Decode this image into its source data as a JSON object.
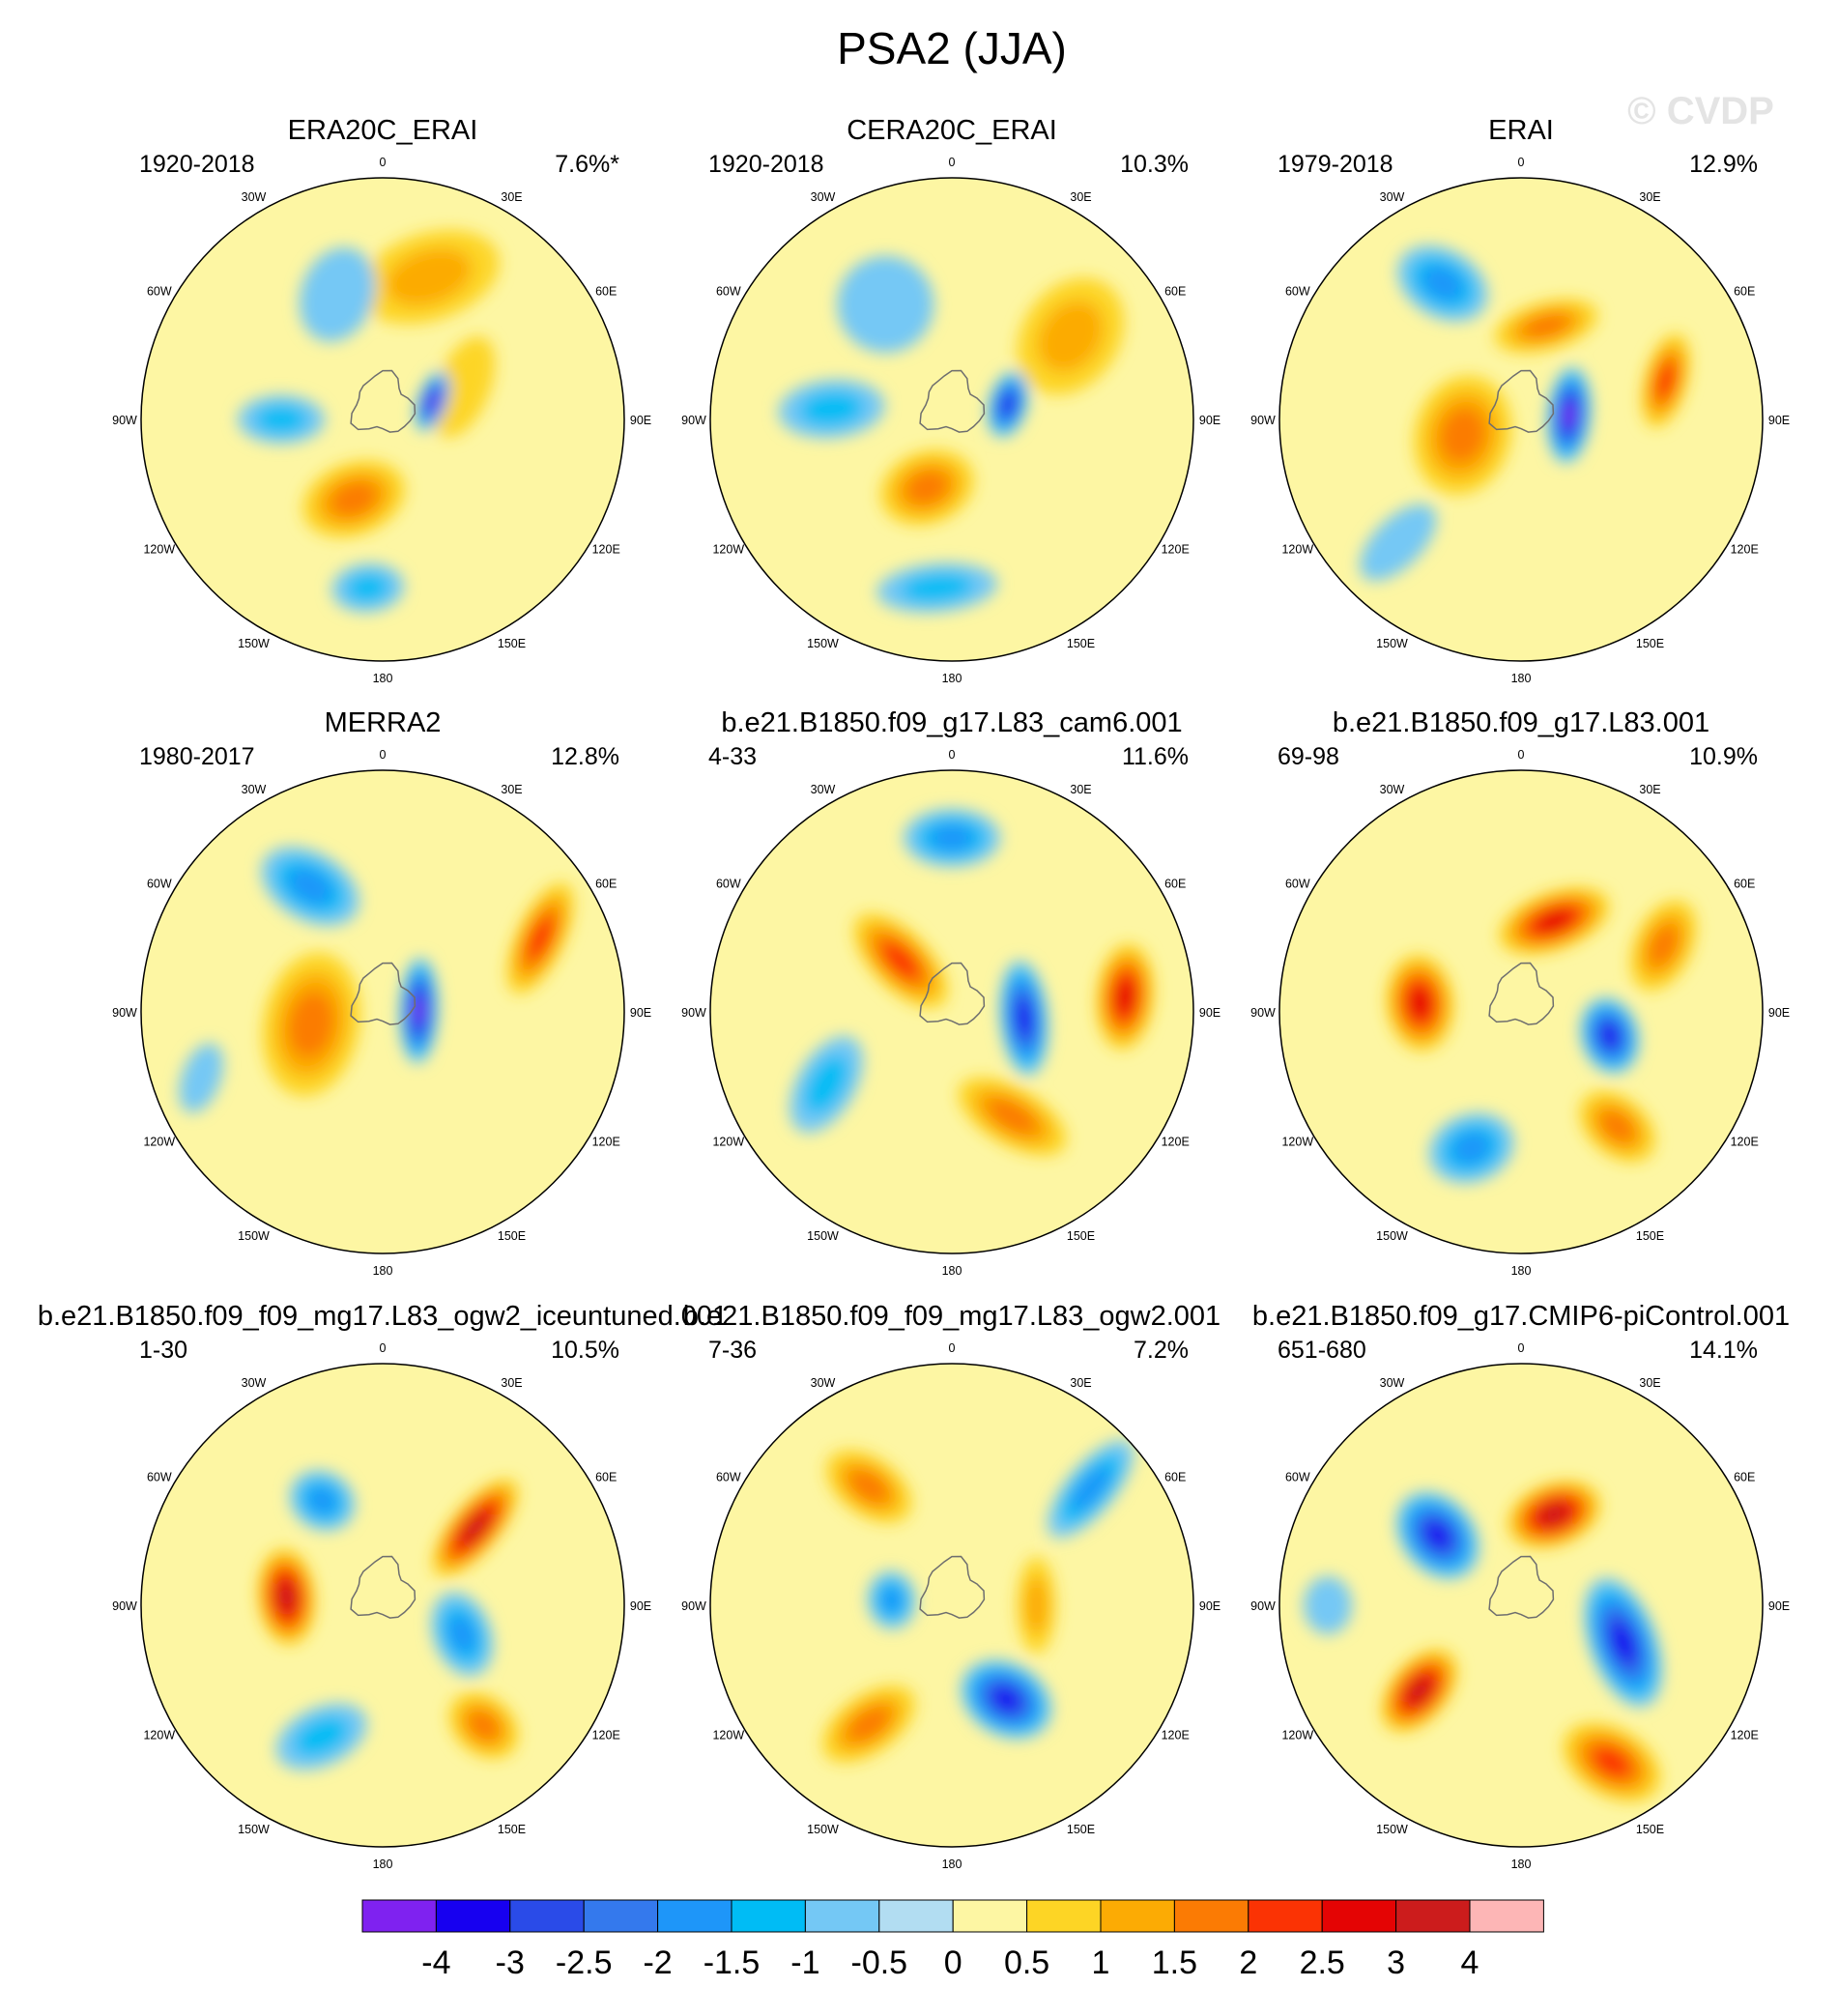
{
  "title": "PSA2 (JJA)",
  "watermark": "© CVDP",
  "lon_labels": [
    "0",
    "30E",
    "60E",
    "90E",
    "120E",
    "150E",
    "180",
    "150W",
    "120W",
    "90W",
    "60W",
    "30W"
  ],
  "colorbar": {
    "colors": [
      "#7f22f0",
      "#1700f0",
      "#2a4be8",
      "#3479ed",
      "#1e96f9",
      "#00bcf5",
      "#74c8f5",
      "#b2ddf2",
      "#fdf6a3",
      "#fdd525",
      "#fcab04",
      "#fb7b04",
      "#fb3304",
      "#e40404",
      "#cc1c1c",
      "#fdb6b6"
    ],
    "ticks": [
      "-4",
      "-3",
      "-2.5",
      "-2",
      "-1.5",
      "-1",
      "-0.5",
      "0",
      "0.5",
      "1",
      "1.5",
      "2",
      "2.5",
      "3",
      "4"
    ]
  },
  "chart_data": [
    {
      "type": "contour-map",
      "title": "ERA20C_ERAI",
      "period": "1920-2018",
      "variance": "7.6%*",
      "features": [
        {
          "lon": 198,
          "r": 0.62,
          "a": 0.3,
          "b": 0.18,
          "val": 1.0
        },
        {
          "lon": 248,
          "r": 0.36,
          "a": 0.22,
          "b": 0.11,
          "val": 0.9
        },
        {
          "lon": 250,
          "r": 0.22,
          "a": 0.13,
          "b": 0.06,
          "val": -4.0
        },
        {
          "lon": 20,
          "r": 0.35,
          "a": 0.22,
          "b": 0.15,
          "val": 1.5
        },
        {
          "lon": 5,
          "r": 0.7,
          "a": 0.15,
          "b": 0.1,
          "val": -1.0
        },
        {
          "lon": 90,
          "r": 0.42,
          "a": 0.1,
          "b": 0.18,
          "val": -1.0
        },
        {
          "lon": 160,
          "r": 0.55,
          "a": 0.15,
          "b": 0.2,
          "val": -0.5
        }
      ]
    },
    {
      "type": "contour-map",
      "title": "CERA20C_ERAI",
      "period": "1920-2018",
      "variance": "10.3%",
      "features": [
        {
          "lon": 235,
          "r": 0.6,
          "a": 0.26,
          "b": 0.2,
          "val": 1.0
        },
        {
          "lon": 255,
          "r": 0.24,
          "a": 0.14,
          "b": 0.08,
          "val": -3.0
        },
        {
          "lon": 20,
          "r": 0.3,
          "a": 0.2,
          "b": 0.15,
          "val": 1.5
        },
        {
          "lon": 5,
          "r": 0.7,
          "a": 0.25,
          "b": 0.1,
          "val": -1.0
        },
        {
          "lon": 95,
          "r": 0.5,
          "a": 0.12,
          "b": 0.22,
          "val": -1.0
        },
        {
          "lon": 150,
          "r": 0.55,
          "a": 0.2,
          "b": 0.2,
          "val": -0.5
        }
      ]
    },
    {
      "type": "contour-map",
      "title": "ERAI",
      "period": "1979-2018",
      "variance": "12.9%",
      "features": [
        {
          "lon": 265,
          "r": 0.2,
          "a": 0.2,
          "b": 0.09,
          "val": -4.0
        },
        {
          "lon": 255,
          "r": 0.62,
          "a": 0.2,
          "b": 0.09,
          "val": 2.0
        },
        {
          "lon": 75,
          "r": 0.25,
          "a": 0.25,
          "b": 0.2,
          "val": 1.5
        },
        {
          "lon": 195,
          "r": 0.4,
          "a": 0.22,
          "b": 0.1,
          "val": 1.5
        },
        {
          "lon": 150,
          "r": 0.65,
          "a": 0.2,
          "b": 0.14,
          "val": -1.5
        },
        {
          "lon": 45,
          "r": 0.72,
          "a": 0.2,
          "b": 0.1,
          "val": -0.5
        }
      ]
    },
    {
      "type": "contour-map",
      "title": "MERRA2",
      "period": "1980-2017",
      "variance": "12.8%",
      "features": [
        {
          "lon": 268,
          "r": 0.15,
          "a": 0.22,
          "b": 0.08,
          "val": -4.0
        },
        {
          "lon": 245,
          "r": 0.72,
          "a": 0.25,
          "b": 0.1,
          "val": 2.0
        },
        {
          "lon": 80,
          "r": 0.3,
          "a": 0.3,
          "b": 0.2,
          "val": 1.5
        },
        {
          "lon": 150,
          "r": 0.6,
          "a": 0.22,
          "b": 0.14,
          "val": -1.5
        },
        {
          "lon": 70,
          "r": 0.8,
          "a": 0.15,
          "b": 0.08,
          "val": -0.5
        }
      ]
    },
    {
      "type": "contour-map",
      "title": "b.e21.B1850.f09_g17.L83_cam6.001",
      "period": "4-33",
      "variance": "11.6%",
      "features": [
        {
          "lon": 275,
          "r": 0.3,
          "a": 0.24,
          "b": 0.1,
          "val": -3.0
        },
        {
          "lon": 265,
          "r": 0.72,
          "a": 0.22,
          "b": 0.12,
          "val": 2.5
        },
        {
          "lon": 330,
          "r": 0.5,
          "a": 0.25,
          "b": 0.12,
          "val": 1.5
        },
        {
          "lon": 135,
          "r": 0.3,
          "a": 0.25,
          "b": 0.12,
          "val": 2.0
        },
        {
          "lon": 60,
          "r": 0.6,
          "a": 0.22,
          "b": 0.12,
          "val": -1.0
        },
        {
          "lon": 180,
          "r": 0.72,
          "a": 0.2,
          "b": 0.12,
          "val": -1.5
        }
      ]
    },
    {
      "type": "contour-map",
      "title": "b.e21.B1850.f09_g17.L83.001",
      "period": "69-98",
      "variance": "10.9%",
      "features": [
        {
          "lon": 285,
          "r": 0.38,
          "a": 0.16,
          "b": 0.12,
          "val": -3.0
        },
        {
          "lon": 95,
          "r": 0.42,
          "a": 0.2,
          "b": 0.14,
          "val": 2.5
        },
        {
          "lon": 200,
          "r": 0.4,
          "a": 0.24,
          "b": 0.12,
          "val": 2.5
        },
        {
          "lon": 20,
          "r": 0.6,
          "a": 0.18,
          "b": 0.14,
          "val": -1.5
        },
        {
          "lon": 320,
          "r": 0.62,
          "a": 0.18,
          "b": 0.12,
          "val": 1.5
        },
        {
          "lon": 245,
          "r": 0.65,
          "a": 0.2,
          "b": 0.12,
          "val": 1.5
        }
      ]
    },
    {
      "type": "contour-map",
      "title": "b.e21.B1850.f09_f09_mg17.L83_ogw2_iceuntuned.001",
      "period": "1-30",
      "variance": "10.5%",
      "features": [
        {
          "lon": 290,
          "r": 0.35,
          "a": 0.18,
          "b": 0.12,
          "val": -1.5
        },
        {
          "lon": 95,
          "r": 0.4,
          "a": 0.2,
          "b": 0.12,
          "val": 3.0
        },
        {
          "lon": 230,
          "r": 0.5,
          "a": 0.25,
          "b": 0.1,
          "val": 3.0
        },
        {
          "lon": 320,
          "r": 0.65,
          "a": 0.16,
          "b": 0.12,
          "val": 1.5
        },
        {
          "lon": 25,
          "r": 0.6,
          "a": 0.2,
          "b": 0.12,
          "val": -1.0
        },
        {
          "lon": 150,
          "r": 0.5,
          "a": 0.14,
          "b": 0.12,
          "val": -1.5
        }
      ]
    },
    {
      "type": "contour-map",
      "title": "b.e21.B1850.f09_f09_mg17.L83_ogw2.001",
      "period": "7-36",
      "variance": "7.2%",
      "features": [
        {
          "lon": 330,
          "r": 0.45,
          "a": 0.2,
          "b": 0.15,
          "val": -3.0
        },
        {
          "lon": 35,
          "r": 0.6,
          "a": 0.22,
          "b": 0.12,
          "val": 1.5
        },
        {
          "lon": 230,
          "r": 0.75,
          "a": 0.25,
          "b": 0.1,
          "val": -1.5
        },
        {
          "lon": 145,
          "r": 0.6,
          "a": 0.2,
          "b": 0.12,
          "val": 1.5
        },
        {
          "lon": 270,
          "r": 0.35,
          "a": 0.2,
          "b": 0.08,
          "val": 1.0
        },
        {
          "lon": 95,
          "r": 0.25,
          "a": 0.12,
          "b": 0.1,
          "val": -1.5
        }
      ]
    },
    {
      "type": "contour-map",
      "title": "b.e21.B1850.f09_g17.CMIP6-piControl.001",
      "period": "651-680",
      "variance": "14.1%",
      "features": [
        {
          "lon": 330,
          "r": 0.75,
          "a": 0.22,
          "b": 0.14,
          "val": 2.0
        },
        {
          "lon": 290,
          "r": 0.45,
          "a": 0.28,
          "b": 0.14,
          "val": -3.0
        },
        {
          "lon": 50,
          "r": 0.55,
          "a": 0.2,
          "b": 0.12,
          "val": 3.0
        },
        {
          "lon": 200,
          "r": 0.4,
          "a": 0.2,
          "b": 0.13,
          "val": 3.0
        },
        {
          "lon": 130,
          "r": 0.45,
          "a": 0.2,
          "b": 0.15,
          "val": -3.0
        },
        {
          "lon": 90,
          "r": 0.8,
          "a": 0.12,
          "b": 0.1,
          "val": -0.5
        }
      ]
    }
  ]
}
